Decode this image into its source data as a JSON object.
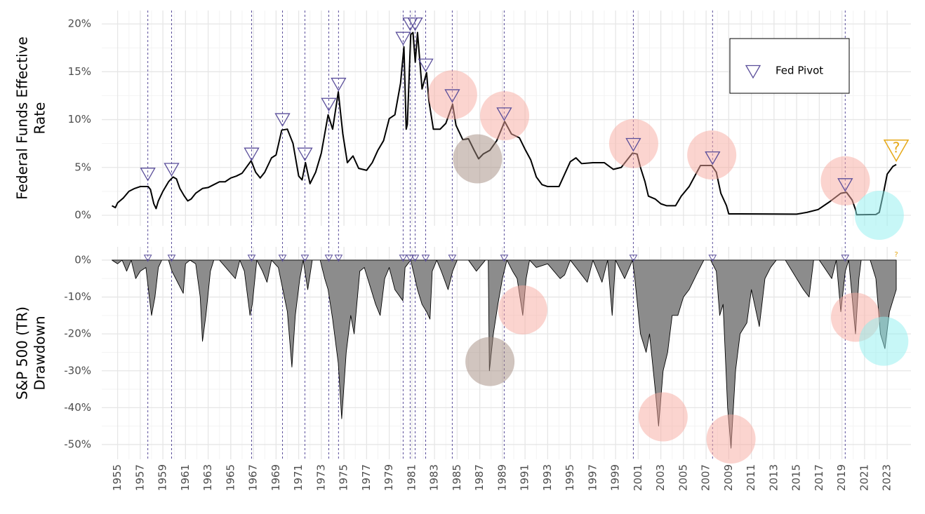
{
  "chart_data": [
    {
      "type": "line",
      "y_label": [
        "Federal Funds Effective",
        "Rate"
      ],
      "xlim": [
        1953.6,
        2025.1
      ],
      "ylim": [
        -1.1,
        21.4
      ],
      "yticks": [
        {
          "value": 0,
          "label": "0%"
        },
        {
          "value": 5,
          "label": "5%"
        },
        {
          "value": 10,
          "label": "10%"
        },
        {
          "value": 15,
          "label": "15%"
        },
        {
          "value": 20,
          "label": "20%"
        }
      ],
      "color": "#000000",
      "x": [
        1954.5,
        1954.8,
        1955,
        1955.5,
        1956,
        1956.5,
        1957,
        1957.7,
        1957.9,
        1958.2,
        1958.4,
        1958.6,
        1959,
        1959.5,
        1959.9,
        1960.2,
        1960.5,
        1960.9,
        1961.2,
        1961.5,
        1961.9,
        1962.5,
        1963,
        1963.5,
        1964,
        1964.5,
        1965,
        1965.5,
        1966,
        1966.8,
        1967.2,
        1967.6,
        1968,
        1968.6,
        1969,
        1969.5,
        1970,
        1970.5,
        1971,
        1971.3,
        1971.6,
        1972,
        1972.5,
        1973,
        1973.6,
        1974,
        1974.5,
        1974.9,
        1975.3,
        1975.8,
        1976.3,
        1977,
        1977.5,
        1978,
        1978.5,
        1979,
        1979.5,
        1980,
        1980.3,
        1980.5,
        1980.6,
        1980.9,
        1981.1,
        1981.3,
        1981.5,
        1981.9,
        1982.3,
        1982.5,
        1982.9,
        1983.5,
        1984,
        1984.6,
        1984.9,
        1985.5,
        1986,
        1986.5,
        1986.9,
        1987.3,
        1987.9,
        1988.5,
        1989.2,
        1989.8,
        1990.5,
        1991,
        1991.5,
        1992,
        1992.5,
        1993,
        1994,
        1994.5,
        1995,
        1995.5,
        1996,
        1997,
        1998,
        1998.8,
        1999.5,
        2000.5,
        2000.9,
        2001.2,
        2001.6,
        2001.9,
        2002.5,
        2003,
        2003.5,
        2004.3,
        2004.8,
        2005.5,
        2006.5,
        2007.5,
        2007.9,
        2008.3,
        2008.8,
        2009,
        2010,
        2012,
        2015,
        2015.9,
        2016.9,
        2017.9,
        2018.9,
        2019.4,
        2019.9,
        2020.2,
        2020.3,
        2022,
        2022.3,
        2022.7,
        2023,
        2023.5,
        2023.8
      ],
      "values": [
        1.0,
        0.8,
        1.3,
        1.8,
        2.5,
        2.8,
        3.0,
        3.0,
        2.7,
        1.2,
        0.7,
        1.5,
        2.5,
        3.5,
        4.0,
        3.8,
        2.8,
        2.0,
        1.5,
        1.7,
        2.3,
        2.8,
        2.9,
        3.2,
        3.5,
        3.5,
        3.9,
        4.1,
        4.4,
        5.7,
        4.5,
        3.9,
        4.5,
        6.0,
        6.3,
        8.9,
        9.0,
        7.5,
        4.1,
        3.7,
        5.5,
        3.3,
        4.5,
        6.5,
        10.5,
        9.0,
        12.9,
        8.5,
        5.5,
        6.2,
        4.9,
        4.7,
        5.5,
        6.8,
        7.8,
        10.1,
        10.5,
        13.8,
        17.6,
        9.0,
        9.5,
        18.9,
        19.1,
        16.0,
        19.1,
        13.2,
        14.9,
        12.0,
        9.0,
        9.0,
        9.6,
        11.6,
        9.4,
        7.9,
        8.0,
        6.8,
        5.9,
        6.4,
        6.8,
        7.8,
        9.8,
        8.5,
        8.1,
        6.9,
        5.8,
        4.0,
        3.2,
        3.0,
        3.0,
        4.3,
        5.6,
        6.0,
        5.4,
        5.5,
        5.5,
        4.8,
        5.0,
        6.5,
        6.4,
        5.0,
        3.5,
        2.0,
        1.7,
        1.2,
        1.0,
        1.0,
        2.0,
        3.0,
        5.2,
        5.2,
        4.5,
        2.3,
        1.0,
        0.15,
        0.15,
        0.14,
        0.12,
        0.3,
        0.6,
        1.4,
        2.3,
        2.4,
        1.6,
        0.6,
        0.05,
        0.08,
        0.3,
        2.5,
        4.3,
        5.1,
        5.3
      ],
      "pivots": {
        "name": "Fed Pivot",
        "color": "#5a4e9a",
        "x": [
          1957.67,
          1959.77,
          1966.84,
          1969.57,
          1971.55,
          1973.66,
          1974.52,
          1980.23,
          1980.85,
          1981.29,
          1982.22,
          1984.57,
          1989.16,
          2000.57,
          2007.57,
          2019.29
        ],
        "values": [
          4.3,
          4.8,
          6.4,
          10.0,
          6.4,
          11.6,
          13.7,
          18.5,
          20.0,
          20.0,
          15.7,
          12.5,
          10.6,
          7.4,
          6.0,
          3.2
        ]
      },
      "next_pivot": {
        "label": "?",
        "x": 2023.8,
        "value": 6.8,
        "color": "#e6a817"
      },
      "highlights": [
        {
          "x": 1984.6,
          "y": 12.6,
          "color": "#f7a99f"
        },
        {
          "x": 1989.2,
          "y": 10.4,
          "color": "#f7a99f"
        },
        {
          "x": 2000.6,
          "y": 7.5,
          "color": "#f7a99f"
        },
        {
          "x": 2007.5,
          "y": 6.3,
          "color": "#f7a99f"
        },
        {
          "x": 2019.3,
          "y": 3.6,
          "color": "#f7a99f"
        },
        {
          "x": 1986.8,
          "y": 5.9,
          "color": "#a38b80"
        },
        {
          "x": 2022.3,
          "y": 0.0,
          "color": "#8ff0f0"
        }
      ]
    },
    {
      "type": "area",
      "y_label": [
        "S&P 500 (TR)",
        "Drawdown"
      ],
      "xlim": [
        1953.6,
        2025.1
      ],
      "ylim": [
        -54,
        3.6
      ],
      "xticks": [
        1955,
        1957,
        1959,
        1961,
        1963,
        1965,
        1967,
        1969,
        1971,
        1973,
        1975,
        1977,
        1979,
        1981,
        1983,
        1985,
        1987,
        1989,
        1991,
        1993,
        1995,
        1997,
        1999,
        2001,
        2003,
        2005,
        2007,
        2009,
        2011,
        2013,
        2015,
        2017,
        2019,
        2021,
        2023
      ],
      "yticks": [
        {
          "value": 0,
          "label": "0%"
        },
        {
          "value": -10,
          "label": "-10%"
        },
        {
          "value": -20,
          "label": "-20%"
        },
        {
          "value": -30,
          "label": "-30%"
        },
        {
          "value": -40,
          "label": "-40%"
        },
        {
          "value": -50,
          "label": "-50%"
        }
      ],
      "color": "#8c8c8c",
      "x": [
        1954.5,
        1955.0,
        1955.4,
        1955.8,
        1956.2,
        1956.6,
        1957.0,
        1957.5,
        1957.8,
        1958.0,
        1958.3,
        1958.6,
        1958.9,
        1959.5,
        1959.8,
        1960.3,
        1960.8,
        1961.0,
        1961.4,
        1961.9,
        1962.3,
        1962.5,
        1962.8,
        1963.2,
        1963.5,
        1964,
        1965.4,
        1965.8,
        1966.2,
        1966.7,
        1966.9,
        1967.3,
        1967.8,
        1968.2,
        1968.6,
        1969.2,
        1969.6,
        1970.0,
        1970.4,
        1970.7,
        1971.1,
        1971.4,
        1971.8,
        1972.2,
        1972.9,
        1973.3,
        1973.6,
        1974.0,
        1974.5,
        1974.8,
        1975.2,
        1975.6,
        1975.9,
        1976.4,
        1976.8,
        1977.2,
        1977.8,
        1978.2,
        1978.6,
        1979.0,
        1979.5,
        1980.2,
        1980.4,
        1980.9,
        1981.5,
        1981.9,
        1982.3,
        1982.6,
        1982.8,
        1983.2,
        1983.6,
        1984.2,
        1984.6,
        1985,
        1986,
        1986.7,
        1987.5,
        1987.75,
        1987.85,
        1988.2,
        1988.6,
        1989.0,
        1989.4,
        1989.9,
        1990.3,
        1990.8,
        1991.1,
        1991.4,
        1992,
        1993,
        1994.1,
        1994.5,
        1995,
        1996.5,
        1997,
        1997.8,
        1998.3,
        1998.7,
        1999,
        1999.8,
        2000.5,
        2000.7,
        2001.2,
        2001.7,
        2002.0,
        2002.5,
        2002.8,
        2003.2,
        2003.6,
        2004.0,
        2004.5,
        2005,
        2005.5,
        2006.3,
        2006.8,
        2007.4,
        2007.9,
        2008.2,
        2008.5,
        2008.9,
        2009.2,
        2009.6,
        2010,
        2010.6,
        2011.0,
        2011.7,
        2012.2,
        2012.7,
        2013.2,
        2014,
        2015.6,
        2016.1,
        2016.5,
        2017,
        2018.1,
        2018.5,
        2018.9,
        2019.3,
        2019.6,
        2020.2,
        2020.5,
        2020.7,
        2021.5,
        2022.0,
        2022.4,
        2022.8,
        2023.2,
        2023.6,
        2023.8
      ],
      "values": [
        0,
        -1,
        0,
        -3,
        0,
        -5,
        -3,
        -2,
        -10,
        -15,
        -10,
        -2,
        0,
        0,
        -3,
        -6,
        -9,
        -1,
        0,
        -1,
        -10,
        -22,
        -15,
        -3,
        0,
        0,
        -5,
        0,
        -3,
        -15,
        -12,
        0,
        -3,
        -6,
        0,
        -2,
        -8,
        -14,
        -29,
        -15,
        -5,
        0,
        -8,
        0,
        0,
        -5,
        -8,
        -16,
        -28,
        -43,
        -25,
        -15,
        -20,
        -3,
        -2,
        -6,
        -12,
        -15,
        -5,
        -2,
        -8,
        -11,
        -2,
        0,
        -8,
        -12,
        -14,
        -16,
        -3,
        0,
        -3,
        -8,
        -3,
        0,
        0,
        -3,
        0,
        0,
        -30,
        -20,
        -12,
        -5,
        0,
        -3,
        -5,
        -15,
        -5,
        0,
        -2,
        -1,
        -5,
        -4,
        0,
        -6,
        0,
        -6,
        0,
        -15,
        0,
        -5,
        0,
        -5,
        -20,
        -25,
        -20,
        -35,
        -45,
        -30,
        -25,
        -15,
        -15,
        -10,
        -8,
        -3,
        0,
        0,
        -3,
        -15,
        -12,
        -40,
        -51,
        -30,
        -20,
        -17,
        -8,
        -18,
        -5,
        -2,
        0,
        0,
        -8,
        -10,
        0,
        0,
        -5,
        0,
        -14,
        -3,
        0,
        -20,
        -5,
        0,
        0,
        -5,
        -20,
        -24,
        -14,
        -10,
        -8
      ],
      "highlights": [
        {
          "x": 1987.9,
          "y": -27.5,
          "color": "#a38b80"
        },
        {
          "x": 1990.8,
          "y": -13.5,
          "color": "#f7a99f"
        },
        {
          "x": 2003.2,
          "y": -42.5,
          "color": "#f7a99f"
        },
        {
          "x": 2009.2,
          "y": -48.5,
          "color": "#f7a99f"
        },
        {
          "x": 2020.2,
          "y": -15.5,
          "color": "#f7a99f"
        },
        {
          "x": 2022.7,
          "y": -22,
          "color": "#8ff0f0"
        }
      ]
    }
  ]
}
